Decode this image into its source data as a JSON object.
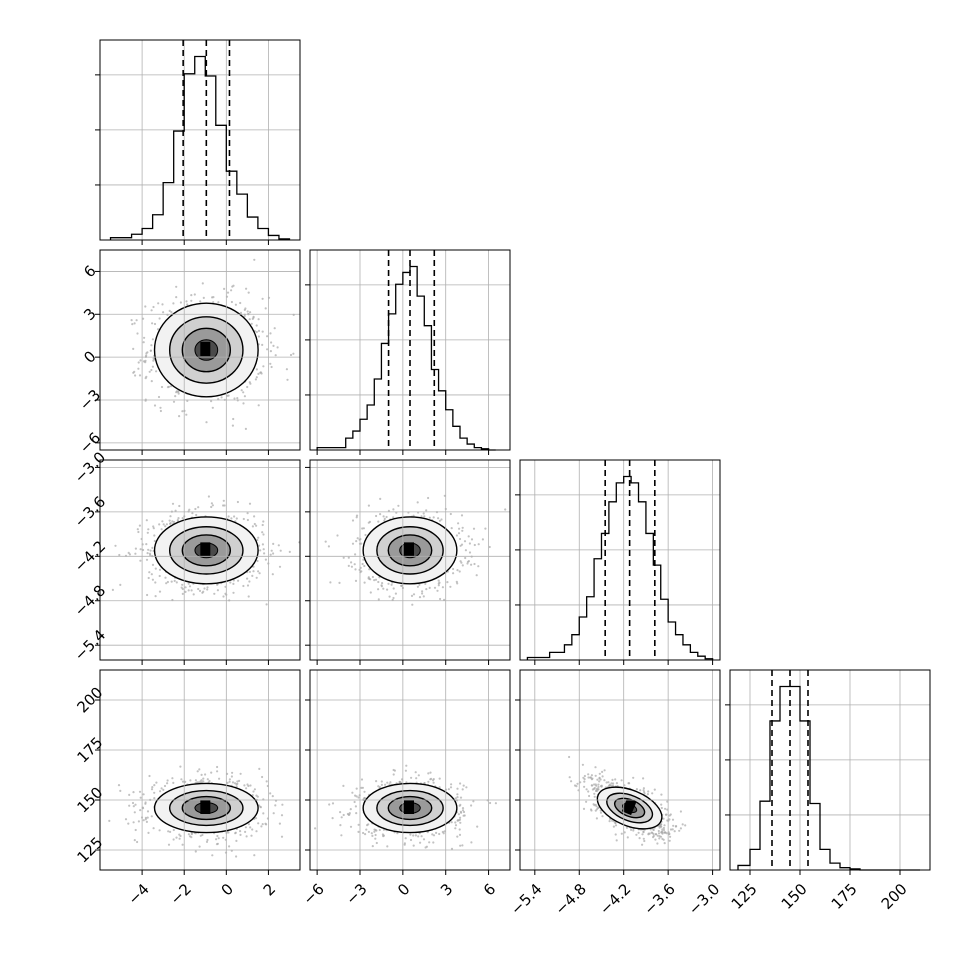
{
  "chart_data": {
    "type": "corner",
    "grid": true,
    "parameters": [
      {
        "range": [
          -6,
          3.5
        ],
        "ticks": [
          -4,
          -2,
          0,
          2
        ],
        "tick_labels": [
          "−4",
          "−2",
          "0",
          "2"
        ],
        "quantiles": [
          -2.05,
          -0.95,
          0.15
        ]
      },
      {
        "range": [
          -6.5,
          7.5
        ],
        "ticks": [
          -6,
          -3,
          0,
          3,
          6
        ],
        "tick_labels": [
          "−6",
          "−3",
          "0",
          "3",
          "6"
        ],
        "quantiles": [
          -1.0,
          0.5,
          2.2
        ]
      },
      {
        "range": [
          -5.6,
          -2.9
        ],
        "ticks": [
          -5.4,
          -4.8,
          -4.2,
          -3.6,
          -3.0
        ],
        "tick_labels": [
          "−5.4",
          "−4.8",
          "−4.2",
          "−3.6",
          "−3.0"
        ],
        "quantiles": [
          -4.45,
          -4.12,
          -3.78
        ]
      },
      {
        "range": [
          115,
          215
        ],
        "ticks": [
          125,
          150,
          175,
          200
        ],
        "tick_labels": [
          "125",
          "150",
          "175",
          "200"
        ],
        "quantiles": [
          136,
          145,
          154
        ]
      }
    ],
    "histograms": [
      {
        "edges": [
          -5.5,
          -4.5,
          -4.0,
          -3.5,
          -3.0,
          -2.5,
          -2.0,
          -1.5,
          -1.0,
          -0.5,
          0.0,
          0.5,
          1.0,
          1.5,
          2.0,
          2.5,
          3.0
        ],
        "counts": [
          2,
          5,
          10,
          22,
          50,
          95,
          145,
          160,
          143,
          100,
          60,
          40,
          20,
          10,
          4,
          1
        ]
      },
      {
        "edges": [
          -6.0,
          -4.0,
          -3.5,
          -3.0,
          -2.5,
          -2.0,
          -1.5,
          -1.0,
          -0.5,
          0.0,
          0.5,
          1.0,
          1.5,
          2.0,
          2.5,
          3.0,
          3.5,
          4.0,
          4.5,
          5.0,
          5.5,
          6.0,
          6.5
        ],
        "counts": [
          2,
          10,
          16,
          26,
          38,
          60,
          90,
          115,
          140,
          150,
          155,
          130,
          105,
          68,
          50,
          34,
          20,
          10,
          5,
          2,
          1,
          0
        ]
      },
      {
        "edges": [
          -5.5,
          -5.2,
          -5.0,
          -4.9,
          -4.8,
          -4.7,
          -4.6,
          -4.5,
          -4.4,
          -4.3,
          -4.2,
          -4.1,
          -4.0,
          -3.9,
          -3.8,
          -3.7,
          -3.6,
          -3.5,
          -3.4,
          -3.3,
          -3.2,
          -3.1,
          -3.0
        ],
        "counts": [
          2,
          6,
          12,
          20,
          34,
          50,
          80,
          100,
          125,
          140,
          145,
          140,
          125,
          100,
          75,
          48,
          30,
          20,
          12,
          6,
          3,
          1
        ]
      },
      {
        "edges": [
          119,
          125,
          130,
          135,
          140,
          145,
          150,
          155,
          160,
          165,
          170,
          175,
          180,
          190,
          210
        ],
        "counts": [
          4,
          18,
          60,
          130,
          160,
          160,
          130,
          58,
          18,
          6,
          2,
          1,
          0,
          0
        ]
      }
    ],
    "pairs": [
      {
        "x": 0,
        "y": 1,
        "center": [
          -0.95,
          0.5
        ],
        "sigma": [
          1.2,
          1.6
        ],
        "rho": 0
      },
      {
        "x": 0,
        "y": 2,
        "center": [
          -0.95,
          -4.12
        ],
        "sigma": [
          1.2,
          0.22
        ],
        "rho": 0
      },
      {
        "x": 1,
        "y": 2,
        "center": [
          0.5,
          -4.12
        ],
        "sigma": [
          1.6,
          0.22
        ],
        "rho": 0
      },
      {
        "x": 0,
        "y": 3,
        "center": [
          -0.95,
          146
        ],
        "sigma": [
          1.2,
          6
        ],
        "rho": 0
      },
      {
        "x": 1,
        "y": 3,
        "center": [
          0.5,
          146
        ],
        "sigma": [
          1.6,
          6
        ],
        "rho": 0
      },
      {
        "x": 2,
        "y": 3,
        "center": [
          -4.12,
          146
        ],
        "sigma": [
          0.22,
          6
        ],
        "rho": -0.62
      }
    ]
  }
}
